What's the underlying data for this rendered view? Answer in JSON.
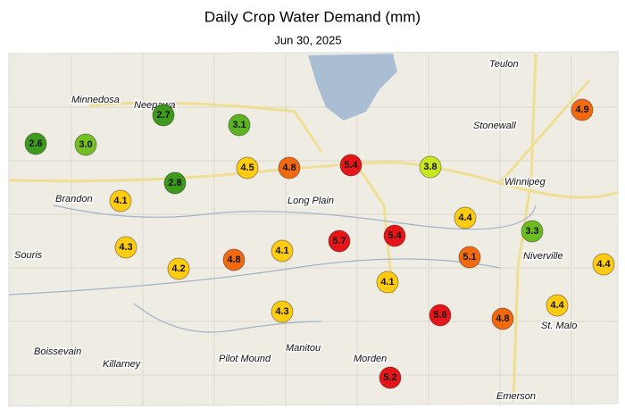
{
  "title": "Daily Crop Water Demand (mm)",
  "subtitle": "Jun 30, 2025",
  "places": [
    "Teulon",
    "Minnedosa",
    "Neepawa",
    "Stonewall",
    "Winnipeg",
    "Brandon",
    "Long Plain",
    "Souris",
    "Niverville",
    "St. Malo",
    "Boissevain",
    "Killarney",
    "Pilot Mound",
    "Manitou",
    "Morden",
    "Emerson"
  ],
  "stations": {
    "values": [
      2.6,
      3.0,
      2.7,
      3.1,
      2.8,
      4.5,
      4.8,
      5.4,
      3.8,
      4.9,
      4.1,
      4.3,
      4.2,
      4.8,
      4.1,
      5.7,
      5.4,
      4.4,
      3.3,
      5.1,
      4.4,
      4.1,
      4.3,
      5.6,
      4.8,
      4.4,
      5.2
    ],
    "value_labels": [
      "2.6",
      "3.0",
      "2.7",
      "3.1",
      "2.8",
      "4.5",
      "4.8",
      "5.4",
      "3.8",
      "4.9",
      "4.1",
      "4.3",
      "4.2",
      "4.8",
      "4.1",
      "5.7",
      "5.4",
      "4.4",
      "3.3",
      "5.1",
      "4.4",
      "4.1",
      "4.3",
      "5.6",
      "4.8",
      "4.4",
      "5.2"
    ],
    "colors": [
      "#3d9a1c",
      "#74c023",
      "#3d9a1c",
      "#5cb31f",
      "#3d9a1c",
      "#ffcc11",
      "#f26a10",
      "#e61519",
      "#c9e81f",
      "#f26a10",
      "#ffcc11",
      "#ffcc11",
      "#ffcc11",
      "#f26a10",
      "#ffcc11",
      "#e61519",
      "#e61519",
      "#ffcc11",
      "#6cbc21",
      "#f26a10",
      "#ffcc11",
      "#ffcc11",
      "#ffcc11",
      "#e61519",
      "#f26a10",
      "#ffcc11",
      "#e61519"
    ]
  }
}
